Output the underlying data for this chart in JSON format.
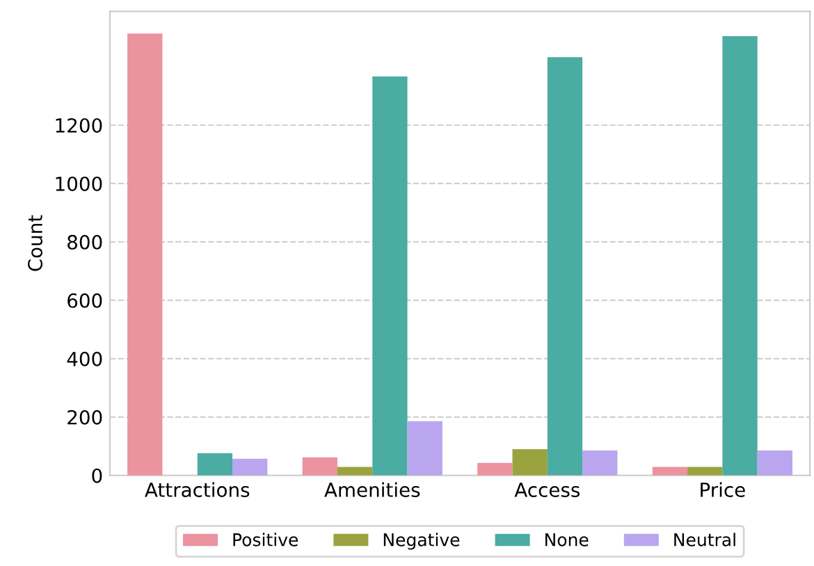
{
  "chart_data": {
    "type": "bar",
    "ylabel": "Count",
    "categories": [
      "Attractions",
      "Amenities",
      "Access",
      "Price"
    ],
    "series": [
      {
        "name": "Positive",
        "color": "#eb939f",
        "values": [
          1514,
          62,
          43,
          29
        ]
      },
      {
        "name": "Negative",
        "color": "#9ba33f",
        "values": [
          0,
          29,
          90,
          29
        ]
      },
      {
        "name": "None",
        "color": "#4aaca3",
        "values": [
          76,
          1367,
          1433,
          1505
        ]
      },
      {
        "name": "Neutral",
        "color": "#b9a6ef",
        "values": [
          57,
          186,
          86,
          86
        ]
      }
    ],
    "ylim": [
      0,
      1590
    ],
    "yticks": [
      0,
      200,
      400,
      600,
      800,
      1000,
      1200
    ],
    "grid": "y",
    "legend": "bottom"
  }
}
